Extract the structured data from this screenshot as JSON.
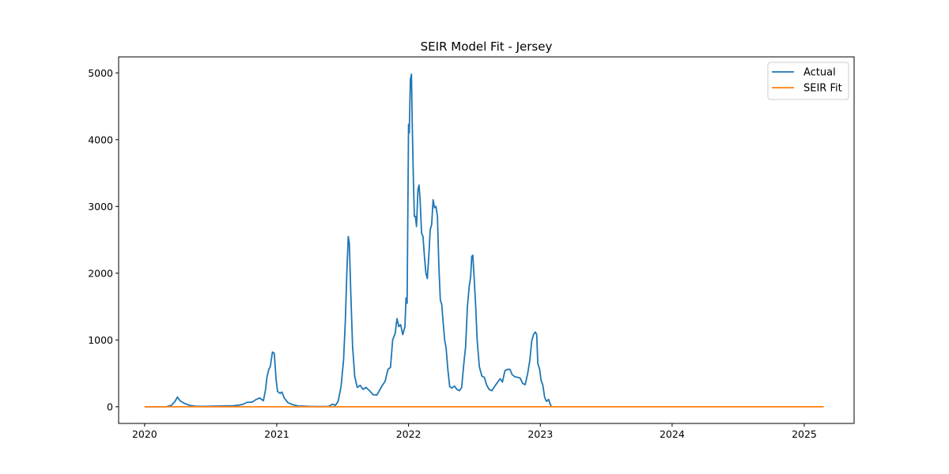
{
  "chart_data": {
    "type": "line",
    "title": "SEIR Model Fit - Jersey",
    "xlabel": "",
    "ylabel": "",
    "x_ticks": [
      "2020",
      "2021",
      "2022",
      "2023",
      "2024",
      "2025"
    ],
    "y_ticks": [
      "0",
      "1000",
      "2000",
      "3000",
      "4000",
      "5000"
    ],
    "xlim": [
      "2019-10-21",
      "2025-05-19"
    ],
    "ylim": [
      -250,
      5240
    ],
    "grid": false,
    "legend_position": "top-right",
    "series": [
      {
        "name": "Actual",
        "color": "#1f77b4",
        "points": [
          [
            "2020-01-01",
            0
          ],
          [
            "2020-03-01",
            0
          ],
          [
            "2020-03-15",
            20
          ],
          [
            "2020-03-25",
            80
          ],
          [
            "2020-04-01",
            145
          ],
          [
            "2020-04-08",
            90
          ],
          [
            "2020-04-20",
            50
          ],
          [
            "2020-05-05",
            20
          ],
          [
            "2020-05-20",
            8
          ],
          [
            "2020-06-10",
            5
          ],
          [
            "2020-07-10",
            8
          ],
          [
            "2020-08-10",
            12
          ],
          [
            "2020-09-01",
            15
          ],
          [
            "2020-09-20",
            25
          ],
          [
            "2020-10-01",
            40
          ],
          [
            "2020-10-10",
            65
          ],
          [
            "2020-10-25",
            70
          ],
          [
            "2020-11-05",
            110
          ],
          [
            "2020-11-15",
            130
          ],
          [
            "2020-11-25",
            90
          ],
          [
            "2020-12-01",
            260
          ],
          [
            "2020-12-05",
            450
          ],
          [
            "2020-12-10",
            560
          ],
          [
            "2020-12-14",
            600
          ],
          [
            "2020-12-20",
            820
          ],
          [
            "2020-12-25",
            800
          ],
          [
            "2020-12-30",
            420
          ],
          [
            "2021-01-03",
            230
          ],
          [
            "2021-01-10",
            200
          ],
          [
            "2021-01-15",
            220
          ],
          [
            "2021-01-22",
            130
          ],
          [
            "2021-02-01",
            60
          ],
          [
            "2021-02-15",
            30
          ],
          [
            "2021-03-01",
            12
          ],
          [
            "2021-04-01",
            5
          ],
          [
            "2021-05-01",
            2
          ],
          [
            "2021-05-25",
            5
          ],
          [
            "2021-06-05",
            40
          ],
          [
            "2021-06-12",
            20
          ],
          [
            "2021-06-20",
            80
          ],
          [
            "2021-06-28",
            300
          ],
          [
            "2021-07-05",
            700
          ],
          [
            "2021-07-10",
            1300
          ],
          [
            "2021-07-14",
            2000
          ],
          [
            "2021-07-18",
            2550
          ],
          [
            "2021-07-21",
            2450
          ],
          [
            "2021-07-25",
            1700
          ],
          [
            "2021-07-30",
            900
          ],
          [
            "2021-08-05",
            450
          ],
          [
            "2021-08-12",
            290
          ],
          [
            "2021-08-20",
            320
          ],
          [
            "2021-08-28",
            260
          ],
          [
            "2021-09-05",
            290
          ],
          [
            "2021-09-15",
            240
          ],
          [
            "2021-09-25",
            180
          ],
          [
            "2021-10-05",
            175
          ],
          [
            "2021-10-10",
            220
          ],
          [
            "2021-10-18",
            300
          ],
          [
            "2021-10-28",
            380
          ],
          [
            "2021-11-05",
            560
          ],
          [
            "2021-11-12",
            590
          ],
          [
            "2021-11-18",
            1000
          ],
          [
            "2021-11-25",
            1100
          ],
          [
            "2021-11-30",
            1320
          ],
          [
            "2021-12-05",
            1200
          ],
          [
            "2021-12-10",
            1230
          ],
          [
            "2021-12-16",
            1080
          ],
          [
            "2021-12-22",
            1200
          ],
          [
            "2021-12-25",
            1630
          ],
          [
            "2021-12-28",
            1550
          ],
          [
            "2022-01-01",
            4230
          ],
          [
            "2022-01-03",
            4100
          ],
          [
            "2022-01-06",
            4900
          ],
          [
            "2022-01-09",
            4980
          ],
          [
            "2022-01-11",
            4300
          ],
          [
            "2022-01-14",
            3500
          ],
          [
            "2022-01-17",
            2850
          ],
          [
            "2022-01-20",
            2850
          ],
          [
            "2022-01-23",
            2700
          ],
          [
            "2022-01-27",
            3250
          ],
          [
            "2022-01-30",
            3320
          ],
          [
            "2022-02-02",
            3100
          ],
          [
            "2022-02-06",
            2600
          ],
          [
            "2022-02-10",
            2550
          ],
          [
            "2022-02-14",
            2250
          ],
          [
            "2022-02-18",
            2000
          ],
          [
            "2022-02-22",
            1920
          ],
          [
            "2022-02-26",
            2250
          ],
          [
            "2022-03-02",
            2650
          ],
          [
            "2022-03-06",
            2730
          ],
          [
            "2022-03-10",
            3100
          ],
          [
            "2022-03-14",
            2980
          ],
          [
            "2022-03-18",
            3000
          ],
          [
            "2022-03-22",
            2850
          ],
          [
            "2022-03-26",
            2100
          ],
          [
            "2022-03-30",
            1600
          ],
          [
            "2022-04-03",
            1530
          ],
          [
            "2022-04-07",
            1250
          ],
          [
            "2022-04-11",
            1000
          ],
          [
            "2022-04-15",
            880
          ],
          [
            "2022-04-20",
            550
          ],
          [
            "2022-04-25",
            300
          ],
          [
            "2022-05-01",
            280
          ],
          [
            "2022-05-08",
            310
          ],
          [
            "2022-05-15",
            260
          ],
          [
            "2022-05-22",
            240
          ],
          [
            "2022-05-28",
            290
          ],
          [
            "2022-06-03",
            640
          ],
          [
            "2022-06-08",
            900
          ],
          [
            "2022-06-13",
            1500
          ],
          [
            "2022-06-18",
            1800
          ],
          [
            "2022-06-22",
            1950
          ],
          [
            "2022-06-25",
            2250
          ],
          [
            "2022-06-28",
            2270
          ],
          [
            "2022-07-02",
            1900
          ],
          [
            "2022-07-06",
            1500
          ],
          [
            "2022-07-10",
            1000
          ],
          [
            "2022-07-16",
            600
          ],
          [
            "2022-07-23",
            460
          ],
          [
            "2022-07-30",
            440
          ],
          [
            "2022-08-05",
            330
          ],
          [
            "2022-08-12",
            260
          ],
          [
            "2022-08-20",
            240
          ],
          [
            "2022-08-28",
            310
          ],
          [
            "2022-09-05",
            370
          ],
          [
            "2022-09-12",
            420
          ],
          [
            "2022-09-18",
            370
          ],
          [
            "2022-09-25",
            540
          ],
          [
            "2022-10-02",
            560
          ],
          [
            "2022-10-09",
            560
          ],
          [
            "2022-10-15",
            480
          ],
          [
            "2022-10-22",
            450
          ],
          [
            "2022-10-30",
            440
          ],
          [
            "2022-11-06",
            430
          ],
          [
            "2022-11-13",
            350
          ],
          [
            "2022-11-20",
            330
          ],
          [
            "2022-11-27",
            500
          ],
          [
            "2022-12-03",
            700
          ],
          [
            "2022-12-08",
            980
          ],
          [
            "2022-12-13",
            1080
          ],
          [
            "2022-12-18",
            1120
          ],
          [
            "2022-12-22",
            1080
          ],
          [
            "2022-12-25",
            650
          ],
          [
            "2022-12-30",
            560
          ],
          [
            "2023-01-03",
            400
          ],
          [
            "2023-01-08",
            320
          ],
          [
            "2023-01-13",
            140
          ],
          [
            "2023-01-18",
            80
          ],
          [
            "2023-01-24",
            110
          ],
          [
            "2023-01-28",
            40
          ],
          [
            "2023-02-01",
            0
          ]
        ]
      },
      {
        "name": "SEIR Fit",
        "color": "#ff7f0e",
        "points": [
          [
            "2020-01-01",
            0
          ],
          [
            "2025-02-24",
            0
          ]
        ]
      }
    ]
  }
}
